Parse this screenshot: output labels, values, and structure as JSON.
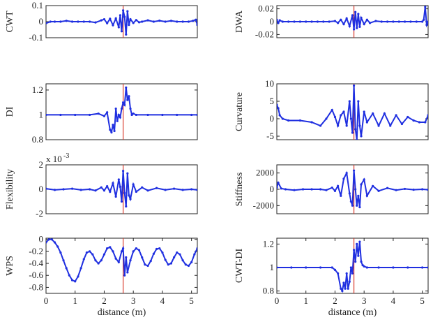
{
  "chart_data": [
    {
      "type": "line",
      "ylabel": "CWT",
      "xlim": [
        0,
        5.2
      ],
      "ylim": [
        -0.1,
        0.1
      ],
      "yticks": [
        "0.1",
        "0",
        "-0.1"
      ],
      "ytick_values": [
        0.1,
        0,
        -0.1
      ],
      "xticks": [],
      "xlabel": "",
      "exponent": "",
      "damage_location": 2.65,
      "line_color": "#1f2fe0",
      "marker_color": "#1f2fe0",
      "vline_color": "#d93a2b",
      "x": [
        0,
        0.15,
        0.3,
        0.5,
        0.7,
        0.9,
        1.1,
        1.3,
        1.5,
        1.7,
        1.9,
        2.0,
        2.1,
        2.2,
        2.3,
        2.4,
        2.5,
        2.55,
        2.6,
        2.65,
        2.7,
        2.75,
        2.8,
        2.85,
        2.9,
        3.0,
        3.1,
        3.2,
        3.3,
        3.5,
        3.7,
        3.9,
        4.1,
        4.3,
        4.5,
        4.7,
        4.9,
        5.05,
        5.15,
        5.2
      ],
      "y": [
        -0.01,
        0,
        0,
        0,
        0.005,
        0,
        0,
        0,
        0,
        -0.005,
        0.008,
        0.015,
        -0.01,
        0.018,
        -0.022,
        0.02,
        -0.035,
        0.04,
        -0.06,
        0.07,
        0.03,
        -0.08,
        0.065,
        -0.02,
        0.015,
        -0.008,
        0.01,
        -0.004,
        0,
        0.008,
        0,
        0.006,
        0,
        0.005,
        0,
        0,
        0,
        0.005,
        0.012,
        -0.02
      ]
    },
    {
      "type": "line",
      "ylabel": "DWA",
      "xlim": [
        0,
        5.2
      ],
      "ylim": [
        -0.025,
        0.025
      ],
      "yticks": [
        "0.02",
        "0",
        "-0.02"
      ],
      "ytick_values": [
        0.02,
        0,
        -0.02
      ],
      "xticks": [],
      "xlabel": "",
      "exponent": "",
      "damage_location": 2.65,
      "line_color": "#1f2fe0",
      "marker_color": "#1f2fe0",
      "vline_color": "#d93a2b",
      "x": [
        0,
        0.05,
        0.1,
        0.2,
        0.4,
        0.6,
        0.8,
        1.0,
        1.2,
        1.4,
        1.6,
        1.8,
        2.0,
        2.1,
        2.2,
        2.3,
        2.4,
        2.5,
        2.6,
        2.65,
        2.7,
        2.75,
        2.8,
        2.85,
        2.9,
        3.0,
        3.1,
        3.2,
        3.4,
        3.6,
        3.8,
        4.0,
        4.2,
        4.4,
        4.6,
        4.8,
        5.0,
        5.05,
        5.1,
        5.15,
        5.2
      ],
      "y": [
        0.003,
        -0.002,
        0.002,
        0,
        0,
        0,
        0,
        0,
        0,
        0,
        0,
        0,
        0.001,
        -0.002,
        0.003,
        -0.004,
        0.005,
        -0.007,
        0.01,
        -0.012,
        0.015,
        -0.01,
        0.012,
        -0.008,
        0.006,
        -0.004,
        0.003,
        -0.002,
        0.001,
        0,
        0,
        0,
        0,
        0,
        0,
        0,
        0,
        0.003,
        0.023,
        -0.005,
        0
      ]
    },
    {
      "type": "line",
      "ylabel": "DI",
      "xlim": [
        0,
        5.2
      ],
      "ylim": [
        0.8,
        1.25
      ],
      "yticks": [
        "1.2",
        "1",
        "0.8"
      ],
      "ytick_values": [
        1.2,
        1,
        0.8
      ],
      "xticks": [],
      "xlabel": "",
      "exponent": "",
      "damage_location": 2.65,
      "line_color": "#1f2fe0",
      "marker_color": "#1f2fe0",
      "vline_color": "#d93a2b",
      "x": [
        0,
        0.5,
        1.0,
        1.5,
        1.8,
        2.0,
        2.1,
        2.2,
        2.25,
        2.3,
        2.35,
        2.4,
        2.45,
        2.5,
        2.55,
        2.6,
        2.65,
        2.7,
        2.75,
        2.8,
        2.85,
        2.9,
        2.95,
        3.0,
        3.1,
        3.5,
        4.0,
        4.5,
        5.0,
        5.2
      ],
      "y": [
        1,
        1,
        1,
        1,
        1.01,
        0.99,
        1.02,
        0.88,
        0.86,
        0.92,
        0.87,
        1.05,
        0.95,
        1.0,
        0.98,
        1.05,
        1.1,
        1.08,
        1.22,
        1.12,
        1.15,
        1.05,
        1.0,
        1.01,
        1,
        1,
        1,
        1,
        1,
        1
      ]
    },
    {
      "type": "line",
      "ylabel": "Curvature",
      "xlim": [
        0,
        5.2
      ],
      "ylim": [
        -6,
        10
      ],
      "yticks": [
        "10",
        "5",
        "0",
        "-5"
      ],
      "ytick_values": [
        10,
        5,
        0,
        -5
      ],
      "xticks": [],
      "xlabel": "",
      "exponent": "",
      "damage_location": 2.65,
      "line_color": "#1f2fe0",
      "marker_color": "#1f2fe0",
      "vline_color": "#d93a2b",
      "x": [
        0,
        0.05,
        0.1,
        0.2,
        0.4,
        0.8,
        1.2,
        1.5,
        1.7,
        1.9,
        2.0,
        2.1,
        2.2,
        2.3,
        2.4,
        2.5,
        2.55,
        2.6,
        2.65,
        2.7,
        2.75,
        2.8,
        2.85,
        2.9,
        3.0,
        3.1,
        3.3,
        3.5,
        3.7,
        3.9,
        4.1,
        4.3,
        4.5,
        4.7,
        4.9,
        5.1,
        5.2
      ],
      "y": [
        4,
        3,
        1,
        0,
        -0.5,
        -0.5,
        -1,
        -2,
        0,
        2.5,
        0.5,
        -2,
        1,
        2,
        -2,
        5,
        0,
        -4,
        9.5,
        -3,
        -6,
        5,
        -2,
        -5,
        2,
        -1,
        1.5,
        -2,
        1.5,
        -2,
        1,
        -1.5,
        0.5,
        -0.5,
        -1,
        -1,
        1
      ]
    },
    {
      "type": "line",
      "ylabel": "Flexibility",
      "xlim": [
        0,
        5.2
      ],
      "ylim": [
        -2,
        2
      ],
      "yticks": [
        "2",
        "0",
        "-2"
      ],
      "ytick_values": [
        2,
        0,
        -2
      ],
      "xticks": [],
      "xlabel": "",
      "exponent": "x 10",
      "exponent_power": "-3",
      "damage_location": 2.65,
      "line_color": "#1f2fe0",
      "marker_color": "#1f2fe0",
      "vline_color": "#d93a2b",
      "x": [
        0,
        0.3,
        0.6,
        0.9,
        1.2,
        1.5,
        1.7,
        1.9,
        2.0,
        2.1,
        2.2,
        2.3,
        2.4,
        2.5,
        2.55,
        2.6,
        2.65,
        2.7,
        2.75,
        2.8,
        2.85,
        2.9,
        3.0,
        3.1,
        3.3,
        3.5,
        3.8,
        4.1,
        4.4,
        4.7,
        5.0,
        5.2
      ],
      "y": [
        0.05,
        -0.05,
        0,
        0.05,
        -0.05,
        0,
        -0.1,
        0.15,
        -0.1,
        0.25,
        -0.2,
        0.5,
        -0.6,
        0.8,
        0.2,
        -1.0,
        1.5,
        -0.3,
        -1.4,
        1.3,
        -0.5,
        -0.8,
        0.4,
        -0.2,
        0.15,
        -0.1,
        0.1,
        -0.05,
        0.05,
        -0.05,
        0,
        -0.05
      ]
    },
    {
      "type": "line",
      "ylabel": "Stiffness",
      "xlim": [
        0,
        5.2
      ],
      "ylim": [
        -3000,
        3000
      ],
      "yticks": [
        "2000",
        "0",
        "-2000"
      ],
      "ytick_values": [
        2000,
        0,
        -2000
      ],
      "xticks": [],
      "xlabel": "",
      "exponent": "",
      "damage_location": 2.65,
      "line_color": "#1f2fe0",
      "marker_color": "#1f2fe0",
      "vline_color": "#d93a2b",
      "x": [
        0,
        0.05,
        0.15,
        0.3,
        0.6,
        0.9,
        1.2,
        1.5,
        1.7,
        1.9,
        2.0,
        2.1,
        2.2,
        2.3,
        2.4,
        2.5,
        2.55,
        2.6,
        2.65,
        2.7,
        2.75,
        2.8,
        2.85,
        2.9,
        3.0,
        3.1,
        3.3,
        3.5,
        3.8,
        4.1,
        4.4,
        4.7,
        5.0,
        5.2
      ],
      "y": [
        200,
        800,
        100,
        0,
        -100,
        0,
        0,
        0,
        -100,
        200,
        -200,
        400,
        -800,
        1300,
        2000,
        -500,
        -1500,
        -2000,
        2300,
        0,
        -2000,
        -800,
        -2200,
        600,
        1200,
        -800,
        400,
        -200,
        150,
        -100,
        50,
        -50,
        0,
        -50
      ]
    },
    {
      "type": "line",
      "ylabel": "WPS",
      "xlim": [
        0,
        5.2
      ],
      "ylim": [
        -0.9,
        0.02
      ],
      "yticks": [
        "0",
        "-0.2",
        "-0.4",
        "-0.6",
        "-0.8"
      ],
      "ytick_values": [
        0,
        -0.2,
        -0.4,
        -0.6,
        -0.8
      ],
      "xticks": [
        "0",
        "1",
        "2",
        "3",
        "4",
        "5"
      ],
      "xtick_values": [
        0,
        1,
        2,
        3,
        4,
        5
      ],
      "xlabel": "",
      "exponent": "",
      "damage_location": 2.65,
      "line_color": "#1f2fe0",
      "marker_color": "#1f2fe0",
      "vline_color": "#d93a2b",
      "x": [
        0,
        0.1,
        0.2,
        0.3,
        0.4,
        0.5,
        0.6,
        0.7,
        0.8,
        0.9,
        1.0,
        1.1,
        1.2,
        1.3,
        1.4,
        1.5,
        1.6,
        1.7,
        1.8,
        1.9,
        2.0,
        2.1,
        2.2,
        2.3,
        2.4,
        2.5,
        2.6,
        2.65,
        2.7,
        2.75,
        2.8,
        2.9,
        3.0,
        3.1,
        3.2,
        3.3,
        3.4,
        3.5,
        3.6,
        3.7,
        3.8,
        3.9,
        4.0,
        4.1,
        4.2,
        4.3,
        4.4,
        4.5,
        4.6,
        4.7,
        4.8,
        4.9,
        5.0,
        5.1,
        5.2
      ],
      "y": [
        -0.05,
        0.0,
        0.0,
        -0.05,
        -0.12,
        -0.22,
        -0.35,
        -0.48,
        -0.6,
        -0.68,
        -0.7,
        -0.62,
        -0.48,
        -0.33,
        -0.22,
        -0.2,
        -0.25,
        -0.35,
        -0.4,
        -0.35,
        -0.25,
        -0.15,
        -0.13,
        -0.2,
        -0.32,
        -0.38,
        -0.2,
        -0.15,
        -0.6,
        -0.3,
        -0.55,
        -0.35,
        -0.2,
        -0.15,
        -0.18,
        -0.3,
        -0.42,
        -0.44,
        -0.36,
        -0.24,
        -0.16,
        -0.15,
        -0.22,
        -0.34,
        -0.42,
        -0.4,
        -0.3,
        -0.22,
        -0.25,
        -0.35,
        -0.42,
        -0.44,
        -0.38,
        -0.25,
        -0.15
      ]
    },
    {
      "type": "line",
      "ylabel": "CWT-DI",
      "xlim": [
        0,
        5.2
      ],
      "ylim": [
        0.78,
        1.25
      ],
      "yticks": [
        "1.2",
        "1",
        "0.8"
      ],
      "ytick_values": [
        1.2,
        1,
        0.8
      ],
      "xticks": [
        "0",
        "1",
        "2",
        "3",
        "4",
        "5"
      ],
      "xtick_values": [
        0,
        1,
        2,
        3,
        4,
        5
      ],
      "xlabel": "",
      "exponent": "",
      "damage_location": 2.65,
      "line_color": "#1f2fe0",
      "marker_color": "#1f2fe0",
      "vline_color": "#d93a2b",
      "x": [
        0,
        0.5,
        1.0,
        1.5,
        1.9,
        2.0,
        2.1,
        2.2,
        2.25,
        2.3,
        2.35,
        2.4,
        2.45,
        2.5,
        2.55,
        2.6,
        2.65,
        2.7,
        2.75,
        2.8,
        2.85,
        2.9,
        2.95,
        3.0,
        3.1,
        3.5,
        4.0,
        4.5,
        5.0,
        5.2
      ],
      "y": [
        1,
        1,
        1,
        1,
        1,
        0.98,
        0.95,
        0.82,
        0.8,
        0.87,
        0.82,
        0.95,
        0.82,
        0.88,
        1.0,
        0.95,
        1.15,
        1.05,
        1.2,
        1.1,
        1.22,
        1.05,
        1.02,
        1.01,
        1,
        1,
        1,
        1,
        1,
        1
      ]
    }
  ],
  "bottom_labels": {
    "left": "distance (m)",
    "right": "distance (m)"
  }
}
